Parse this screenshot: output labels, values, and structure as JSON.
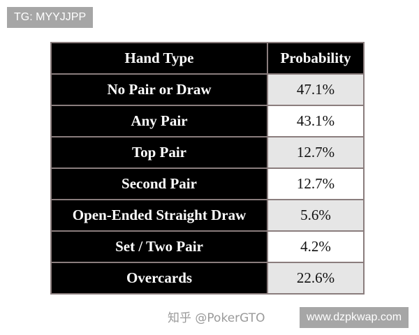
{
  "watermark_top": "TG: MYYJJPP",
  "watermark_bottom": "www.dzpkwap.com",
  "image_watermark": "知乎 @PokerGTO",
  "table": {
    "headers": [
      "Hand Type",
      "Probability"
    ],
    "rows": [
      [
        "No Pair or Draw",
        "47.1%"
      ],
      [
        "Any Pair",
        "43.1%"
      ],
      [
        "Top Pair",
        "12.7%"
      ],
      [
        "Second Pair",
        "12.7%"
      ],
      [
        "Open-Ended Straight Draw",
        "5.6%"
      ],
      [
        "Set / Two Pair",
        "4.2%"
      ],
      [
        "Overcards",
        "22.6%"
      ]
    ]
  }
}
